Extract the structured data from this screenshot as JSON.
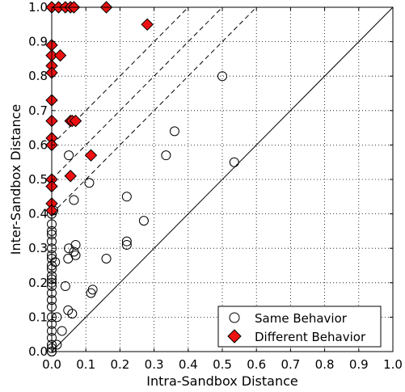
{
  "chart_data": {
    "type": "scatter",
    "xlabel": "Intra-Sandbox Distance",
    "ylabel": "Inter-Sandbox Distance",
    "xlim": [
      0.0,
      1.0
    ],
    "ylim": [
      0.0,
      1.0
    ],
    "x_ticks": [
      "0.0",
      "0.1",
      "0.2",
      "0.3",
      "0.4",
      "0.5",
      "0.6",
      "0.7",
      "0.8",
      "0.9",
      "1.0"
    ],
    "y_ticks": [
      "0.0",
      "0.1",
      "0.2",
      "0.3",
      "0.4",
      "0.5",
      "0.6",
      "0.7",
      "0.8",
      "0.9",
      "1.0"
    ],
    "grid": true,
    "legend_position": "bottom-right",
    "reference_lines": [
      {
        "style": "solid",
        "slope": 1,
        "intercept": 0.0
      },
      {
        "style": "dashed",
        "slope": 1,
        "intercept": 0.4
      },
      {
        "style": "dashed",
        "slope": 1,
        "intercept": 0.5
      },
      {
        "style": "dashed",
        "slope": 1,
        "intercept": 0.6
      }
    ],
    "series": [
      {
        "name": "Same Behavior",
        "marker": "circle",
        "color": "#ffffff",
        "stroke": "#000000",
        "points": [
          [
            0.0,
            0.0
          ],
          [
            0.0,
            0.0
          ],
          [
            0.0,
            0.01
          ],
          [
            0.0,
            0.02
          ],
          [
            0.0,
            0.04
          ],
          [
            0.0,
            0.06
          ],
          [
            0.0,
            0.08
          ],
          [
            0.0,
            0.1
          ],
          [
            0.0,
            0.13
          ],
          [
            0.0,
            0.15
          ],
          [
            0.0,
            0.17
          ],
          [
            0.0,
            0.19
          ],
          [
            0.0,
            0.2
          ],
          [
            0.0,
            0.21
          ],
          [
            0.0,
            0.22
          ],
          [
            0.0,
            0.24
          ],
          [
            0.0,
            0.25
          ],
          [
            0.0,
            0.27
          ],
          [
            0.0,
            0.28
          ],
          [
            0.0,
            0.3
          ],
          [
            0.0,
            0.32
          ],
          [
            0.0,
            0.34
          ],
          [
            0.0,
            0.35
          ],
          [
            0.0,
            0.37
          ],
          [
            0.0,
            0.4
          ],
          [
            0.005,
            0.41
          ],
          [
            0.015,
            0.02
          ],
          [
            0.015,
            0.1
          ],
          [
            0.01,
            0.26
          ],
          [
            0.03,
            0.06
          ],
          [
            0.04,
            0.19
          ],
          [
            0.048,
            0.12
          ],
          [
            0.048,
            0.27
          ],
          [
            0.05,
            0.3
          ],
          [
            0.05,
            0.57
          ],
          [
            0.06,
            0.11
          ],
          [
            0.065,
            0.29
          ],
          [
            0.07,
            0.31
          ],
          [
            0.07,
            0.28
          ],
          [
            0.065,
            0.44
          ],
          [
            0.11,
            0.49
          ],
          [
            0.115,
            0.17
          ],
          [
            0.12,
            0.18
          ],
          [
            0.16,
            0.27
          ],
          [
            0.22,
            0.45
          ],
          [
            0.22,
            0.31
          ],
          [
            0.22,
            0.32
          ],
          [
            0.27,
            0.38
          ],
          [
            0.335,
            0.57
          ],
          [
            0.36,
            0.64
          ],
          [
            0.5,
            0.8
          ],
          [
            0.535,
            0.55
          ]
        ]
      },
      {
        "name": "Different Behavior",
        "marker": "diamond",
        "color": "#ee1111",
        "stroke": "#000000",
        "points": [
          [
            0.0,
            1.0
          ],
          [
            0.02,
            1.0
          ],
          [
            0.04,
            1.0
          ],
          [
            0.055,
            1.0
          ],
          [
            0.065,
            1.0
          ],
          [
            0.16,
            1.0
          ],
          [
            0.28,
            0.95
          ],
          [
            0.0,
            0.89
          ],
          [
            0.0,
            0.86
          ],
          [
            0.025,
            0.86
          ],
          [
            0.0,
            0.83
          ],
          [
            0.0,
            0.81
          ],
          [
            0.0,
            0.73
          ],
          [
            0.0,
            0.67
          ],
          [
            0.055,
            0.67
          ],
          [
            0.06,
            0.67
          ],
          [
            0.07,
            0.67
          ],
          [
            0.0,
            0.62
          ],
          [
            0.0,
            0.6
          ],
          [
            0.115,
            0.57
          ],
          [
            0.0,
            0.5
          ],
          [
            0.055,
            0.51
          ],
          [
            0.0,
            0.48
          ],
          [
            0.0,
            0.43
          ],
          [
            0.0,
            0.41
          ]
        ]
      }
    ]
  }
}
